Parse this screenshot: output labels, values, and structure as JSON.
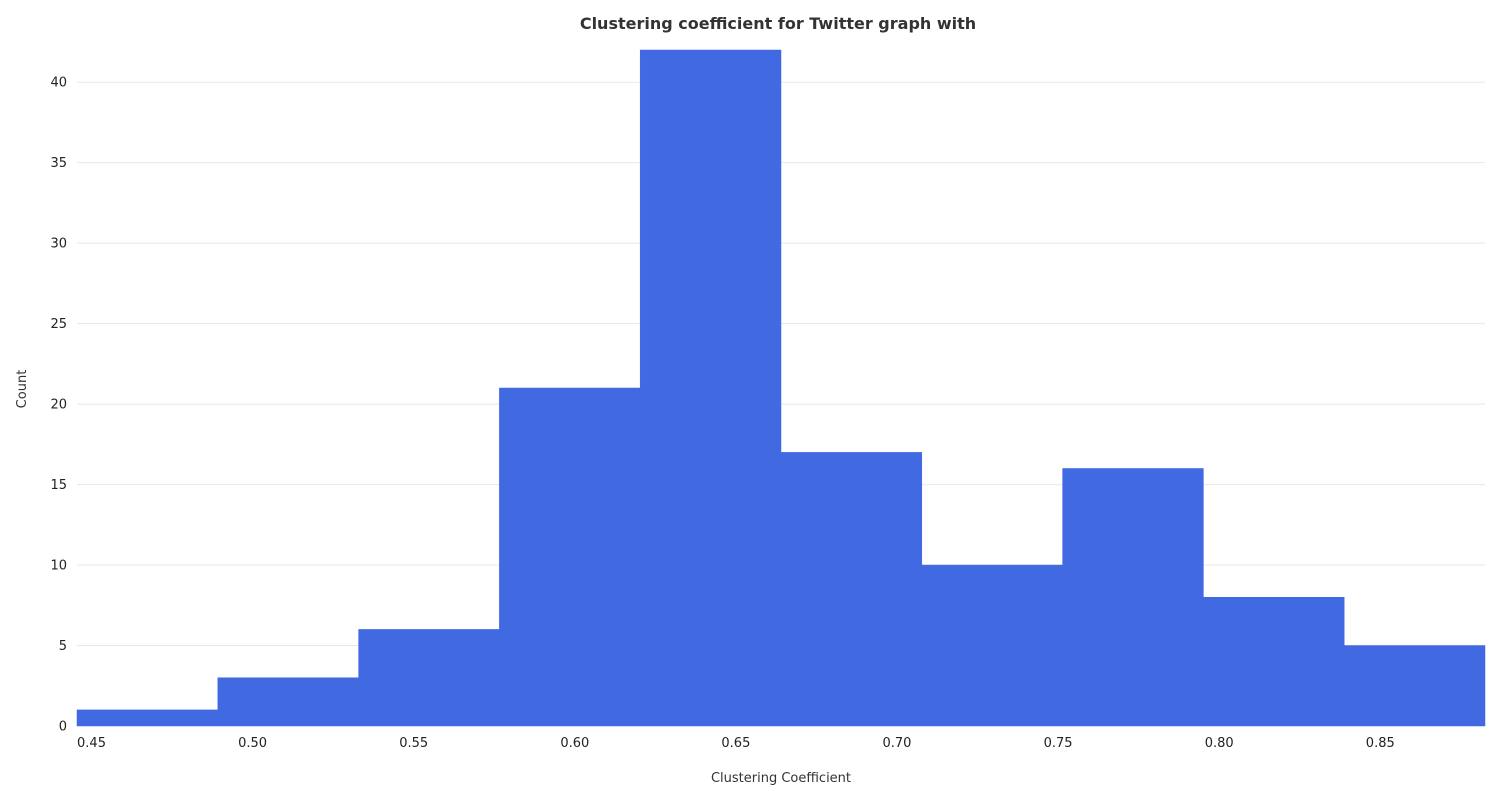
{
  "chart_data": {
    "type": "bar",
    "title": "Clustering coefficient for Twitter graph with",
    "xlabel": "Clustering Coefficient",
    "ylabel": "Count",
    "bins": [
      {
        "x0": 0.4455,
        "x1": 0.4892,
        "count": 1
      },
      {
        "x0": 0.4892,
        "x1": 0.5329,
        "count": 3
      },
      {
        "x0": 0.5329,
        "x1": 0.5766,
        "count": 6
      },
      {
        "x0": 0.5766,
        "x1": 0.6203,
        "count": 21
      },
      {
        "x0": 0.6203,
        "x1": 0.664,
        "count": 42
      },
      {
        "x0": 0.664,
        "x1": 0.7077,
        "count": 17
      },
      {
        "x0": 0.7077,
        "x1": 0.7514,
        "count": 10
      },
      {
        "x0": 0.7514,
        "x1": 0.7951,
        "count": 16
      },
      {
        "x0": 0.7951,
        "x1": 0.8388,
        "count": 8
      },
      {
        "x0": 0.8388,
        "x1": 0.8825,
        "count": 5
      }
    ],
    "xlim": [
      0.4455,
      0.8825
    ],
    "ylim": [
      0,
      42
    ],
    "xticks": [
      {
        "value": 0.45,
        "label": "0.45"
      },
      {
        "value": 0.5,
        "label": "0.50"
      },
      {
        "value": 0.55,
        "label": "0.55"
      },
      {
        "value": 0.6,
        "label": "0.60"
      },
      {
        "value": 0.65,
        "label": "0.65"
      },
      {
        "value": 0.7,
        "label": "0.70"
      },
      {
        "value": 0.75,
        "label": "0.75"
      },
      {
        "value": 0.8,
        "label": "0.80"
      },
      {
        "value": 0.85,
        "label": "0.85"
      }
    ],
    "yticks": [
      {
        "value": 0,
        "label": "0"
      },
      {
        "value": 5,
        "label": "5"
      },
      {
        "value": 10,
        "label": "10"
      },
      {
        "value": 15,
        "label": "15"
      },
      {
        "value": 20,
        "label": "20"
      },
      {
        "value": 25,
        "label": "25"
      },
      {
        "value": 30,
        "label": "30"
      },
      {
        "value": 35,
        "label": "35"
      },
      {
        "value": 40,
        "label": "40"
      }
    ],
    "grid": "horizontal",
    "bar_color": "#4169E1"
  }
}
